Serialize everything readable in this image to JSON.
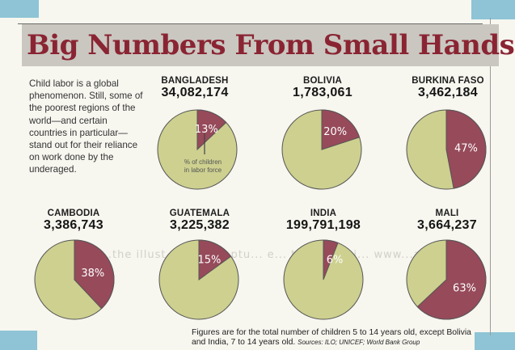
{
  "title": "Big Numbers From Small Hands",
  "intro": "Child labor is a global phenomenon. Still, some of the poorest regions of the world—and certain countries in particular—stand out for their reliance on work done by the underaged.",
  "annotation": "% of children in labor force",
  "ghost_text": "H ...the illust... s... a captu... e... the e...on i... www...ay",
  "footnote": {
    "text": "Figures are for the total number of children 5 to 14 years old, except Bolivia and India, 7 to 14 years old.",
    "source": "Sources: ILO; UNICEF; World Bank Group"
  },
  "colors": {
    "labor": "#964a5a",
    "rest": "#cdd08f",
    "outline": "#555"
  },
  "chart_data": {
    "type": "pie",
    "title": "Big Numbers From Small Hands",
    "measure": "% of children in labor force",
    "countries": [
      {
        "name": "BANGLADESH",
        "children": "34,082,174",
        "pct_label": "13%",
        "pct": 13
      },
      {
        "name": "BOLIVIA",
        "children": "1,783,061",
        "pct_label": "20%",
        "pct": 20
      },
      {
        "name": "BURKINA FASO",
        "children": "3,462,184",
        "pct_label": "47%",
        "pct": 47
      },
      {
        "name": "CAMBODIA",
        "children": "3,386,743",
        "pct_label": "38%",
        "pct": 38
      },
      {
        "name": "GUATEMALA",
        "children": "3,225,382",
        "pct_label": "15%",
        "pct": 15
      },
      {
        "name": "INDIA",
        "children": "199,791,198",
        "pct_label": "6%",
        "pct": 6
      },
      {
        "name": "MALI",
        "children": "3,664,237",
        "pct_label": "63%",
        "pct": 63
      }
    ]
  }
}
